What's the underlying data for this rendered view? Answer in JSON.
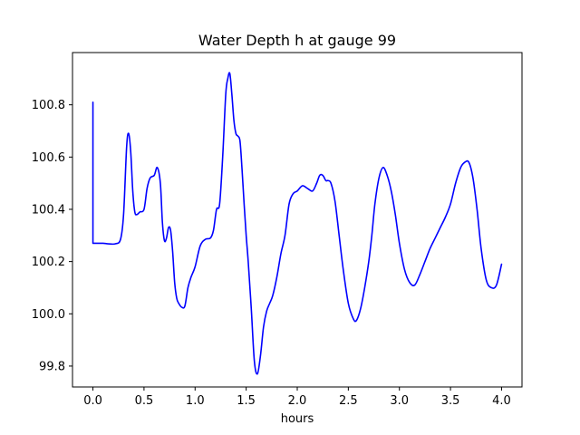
{
  "chart_data": {
    "type": "line",
    "title": "Water Depth h at gauge 99",
    "xlabel": "hours",
    "ylabel": "",
    "xlim": [
      -0.2,
      4.2
    ],
    "ylim": [
      99.72,
      101.0
    ],
    "x_ticks": [
      0.0,
      0.5,
      1.0,
      1.5,
      2.0,
      2.5,
      3.0,
      3.5,
      4.0
    ],
    "x_tick_labels": [
      "0.0",
      "0.5",
      "1.0",
      "1.5",
      "2.0",
      "2.5",
      "3.0",
      "3.5",
      "4.0"
    ],
    "y_ticks": [
      99.8,
      100.0,
      100.2,
      100.4,
      100.6,
      100.8
    ],
    "y_tick_labels": [
      "99.8",
      "100.0",
      "100.2",
      "100.4",
      "100.6",
      "100.8"
    ],
    "grid": false,
    "series": [
      {
        "color": "#0000ff",
        "x": [
          0.0,
          0.0,
          0.05,
          0.1,
          0.15,
          0.22,
          0.27,
          0.3,
          0.33,
          0.35,
          0.37,
          0.39,
          0.41,
          0.43,
          0.46,
          0.5,
          0.53,
          0.56,
          0.6,
          0.63,
          0.66,
          0.68,
          0.7,
          0.72,
          0.74,
          0.76,
          0.78,
          0.8,
          0.82,
          0.84,
          0.87,
          0.9,
          0.93,
          0.96,
          1.0,
          1.05,
          1.1,
          1.15,
          1.18,
          1.21,
          1.24,
          1.27,
          1.3,
          1.32,
          1.34,
          1.36,
          1.38,
          1.4,
          1.42,
          1.44,
          1.46,
          1.48,
          1.5,
          1.52,
          1.55,
          1.58,
          1.61,
          1.64,
          1.67,
          1.7,
          1.73,
          1.76,
          1.8,
          1.84,
          1.88,
          1.92,
          1.96,
          2.0,
          2.05,
          2.1,
          2.15,
          2.19,
          2.22,
          2.25,
          2.28,
          2.3,
          2.33,
          2.37,
          2.41,
          2.45,
          2.5,
          2.55,
          2.58,
          2.62,
          2.66,
          2.7,
          2.73,
          2.76,
          2.8,
          2.84,
          2.88,
          2.92,
          2.96,
          3.0,
          3.05,
          3.1,
          3.15,
          3.2,
          3.25,
          3.3,
          3.35,
          3.4,
          3.45,
          3.5,
          3.55,
          3.6,
          3.64,
          3.68,
          3.72,
          3.76,
          3.8,
          3.85,
          3.9,
          3.95,
          4.0
        ],
        "y": [
          100.81,
          100.27,
          100.27,
          100.27,
          100.268,
          100.268,
          100.285,
          100.38,
          100.64,
          100.69,
          100.62,
          100.47,
          100.39,
          100.38,
          100.39,
          100.4,
          100.48,
          100.52,
          100.53,
          100.56,
          100.5,
          100.35,
          100.28,
          100.29,
          100.33,
          100.32,
          100.24,
          100.12,
          100.06,
          100.04,
          100.025,
          100.03,
          100.1,
          100.14,
          100.18,
          100.26,
          100.285,
          100.29,
          100.32,
          100.4,
          100.42,
          100.6,
          100.84,
          100.9,
          100.92,
          100.84,
          100.74,
          100.69,
          100.68,
          100.66,
          100.55,
          100.42,
          100.3,
          100.2,
          100.02,
          99.82,
          99.77,
          99.84,
          99.95,
          100.01,
          100.04,
          100.07,
          100.14,
          100.23,
          100.3,
          100.42,
          100.46,
          100.47,
          100.49,
          100.48,
          100.47,
          100.5,
          100.53,
          100.53,
          100.51,
          100.51,
          100.5,
          100.43,
          100.3,
          100.17,
          100.04,
          99.98,
          99.975,
          100.02,
          100.1,
          100.2,
          100.3,
          100.42,
          100.52,
          100.56,
          100.53,
          100.47,
          100.38,
          100.27,
          100.17,
          100.12,
          100.11,
          100.15,
          100.2,
          100.25,
          100.29,
          100.33,
          100.37,
          100.42,
          100.5,
          100.56,
          100.58,
          100.58,
          100.52,
          100.4,
          100.25,
          100.13,
          100.1,
          100.11,
          100.19
        ]
      }
    ]
  }
}
